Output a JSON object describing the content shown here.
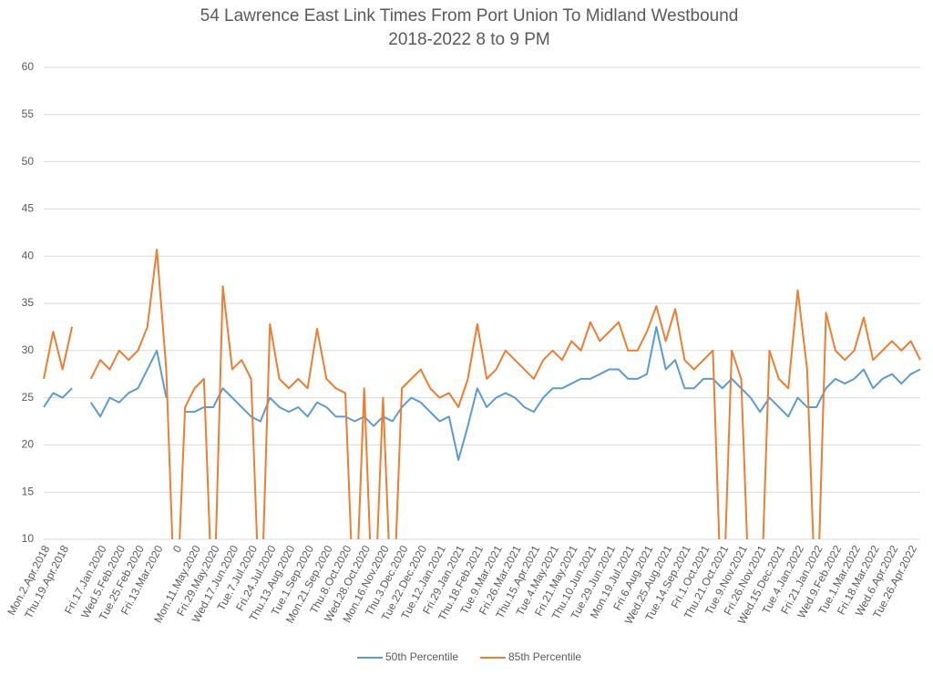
{
  "chart_data": {
    "type": "line",
    "title": "54 Lawrence East Link Times From Port Union To Midland Westbound",
    "subtitle": "2018-2022 8 to 9 PM",
    "categories": [
      "Mon.2.Apr.2018",
      null,
      "Thu.19.Apr.2018",
      null,
      null,
      null,
      "Fri.17.Jan.2020",
      null,
      "Wed.5.Feb.2020",
      null,
      "Tue.25.Feb.2020",
      null,
      "Fri.13.Mar.2020",
      null,
      "0",
      null,
      "Mon.11.May.2020",
      null,
      "Fri.29.May.2020",
      null,
      "Wed.17.Jun.2020",
      null,
      "Tue.7.Jul.2020",
      null,
      "Fri.24.Jul.2020",
      null,
      "Thu.13.Aug.2020",
      null,
      "Tue.1.Sep.2020",
      null,
      "Mon.21.Sep.2020",
      null,
      "Thu.8.Oct.2020",
      null,
      "Wed.28.Oct.2020",
      null,
      "Mon.16.Nov.2020",
      null,
      "Thu.3.Dec.2020",
      null,
      "Tue.22.Dec.2020",
      null,
      "Tue.12.Jan.2021",
      null,
      "Fri.29.Jan.2021",
      null,
      "Thu.18.Feb.2021",
      null,
      "Tue.9.Mar.2021",
      null,
      "Fri.26.Mar.2021",
      null,
      "Thu.15.Apr.2021",
      null,
      "Tue.4.May.2021",
      null,
      "Fri.21.May.2021",
      null,
      "Thu.10.Jun.2021",
      null,
      "Tue.29.Jun.2021",
      null,
      "Mon.19.Jul.2021",
      null,
      "Fri.6.Aug.2021",
      null,
      "Wed.25.Aug.2021",
      null,
      "Tue.14.Sep.2021",
      null,
      "Fri.1.Oct.2021",
      null,
      "Thu.21.Oct.2021",
      null,
      "Tue.9.Nov.2021",
      null,
      "Fri.26.Nov.2021",
      null,
      "Wed.15.Dec.2021",
      null,
      "Tue.4.Jan.2022",
      null,
      "Fri.21.Jan.2022",
      null,
      "Wed.9.Feb.2022",
      null,
      "Tue.1.Mar.2022",
      null,
      "Fri.18.Mar.2022",
      null,
      "Wed.6.Apr.2022",
      null,
      "Tue.26.Apr.2022",
      null
    ],
    "series": [
      {
        "name": "50th Percentile",
        "color": "#5b9bd5",
        "values": [
          24,
          25.5,
          25,
          26,
          null,
          24.5,
          23,
          25,
          24.5,
          25.5,
          26,
          28,
          30,
          25,
          null,
          23.5,
          23.5,
          24,
          24,
          26,
          25,
          24,
          23,
          22.5,
          25,
          24,
          23.5,
          24,
          23,
          24.5,
          24,
          23,
          23,
          22.5,
          23,
          22,
          23,
          22.5,
          24,
          25,
          24.5,
          23.5,
          22.5,
          23,
          18.4,
          22,
          26,
          24,
          25,
          25.5,
          25,
          24,
          23.5,
          25,
          26,
          26,
          26.5,
          27,
          27,
          27.5,
          28,
          28,
          27,
          27,
          27.5,
          32.5,
          28,
          29,
          26,
          26,
          27,
          27,
          26,
          27,
          26,
          25,
          23.5,
          25,
          24,
          23,
          25,
          24,
          24,
          26,
          27,
          26.5,
          27,
          28,
          26,
          27,
          27.5,
          26.5,
          27.5,
          28
        ]
      },
      {
        "name": "85th Percentile",
        "color": "#ed7d31",
        "values": [
          27,
          32,
          28,
          32.5,
          null,
          27,
          29,
          28,
          30,
          29,
          30,
          32.5,
          40.7,
          28,
          0,
          24,
          26,
          27,
          0,
          36.8,
          28,
          29,
          27,
          0,
          32.8,
          27,
          26,
          27,
          26,
          32.3,
          27,
          26,
          25.5,
          0,
          26,
          0,
          25,
          0,
          26,
          27,
          28,
          26,
          25,
          25.5,
          24,
          27,
          32.8,
          27,
          28,
          30,
          29,
          28,
          27,
          29,
          30,
          29,
          31,
          30,
          33,
          31,
          32,
          33,
          30,
          30,
          32,
          34.7,
          31,
          34.4,
          29,
          28,
          29,
          30,
          0,
          30,
          27,
          0,
          0,
          30,
          27,
          26,
          36.4,
          28,
          0,
          34,
          30,
          29,
          30,
          33.5,
          29,
          30,
          31,
          30,
          31,
          29
        ]
      }
    ],
    "ylim": [
      10,
      60
    ],
    "yticks": [
      10,
      15,
      20,
      25,
      30,
      35,
      40,
      45,
      50,
      55,
      60
    ],
    "grid": true,
    "legend": "bottom"
  }
}
